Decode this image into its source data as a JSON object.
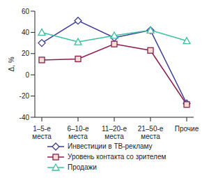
{
  "chart_data": {
    "type": "line",
    "ylabel": "Δ, %",
    "categories": [
      "1–5-е места",
      "6–10-е места",
      "11–20-е места",
      "21–50-е места",
      "Прочие"
    ],
    "series": [
      {
        "name": "Инвестиции в ТВ-рекламу",
        "color": "#3d3d99",
        "marker": "diamond",
        "values": [
          30,
          51,
          35,
          42,
          -27
        ]
      },
      {
        "name": "Уровень контакта со зрителем",
        "color": "#8c1c50",
        "marker": "square",
        "values": [
          14,
          15,
          29,
          23,
          -28
        ]
      },
      {
        "name": "Продажи",
        "color": "#3cc0a0",
        "marker": "triangle",
        "values": [
          40,
          31,
          37,
          42,
          32
        ]
      }
    ],
    "ylim": [
      -40,
      60
    ],
    "yticks": [
      -40,
      -20,
      0,
      20,
      40,
      60
    ],
    "grid": false,
    "legend": "bottom"
  }
}
